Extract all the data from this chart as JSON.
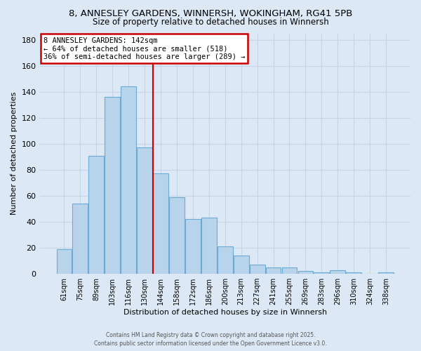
{
  "title_line1": "8, ANNESLEY GARDENS, WINNERSH, WOKINGHAM, RG41 5PB",
  "title_line2": "Size of property relative to detached houses in Winnersh",
  "xlabel": "Distribution of detached houses by size in Winnersh",
  "ylabel": "Number of detached properties",
  "bar_labels": [
    "61sqm",
    "75sqm",
    "89sqm",
    "103sqm",
    "116sqm",
    "130sqm",
    "144sqm",
    "158sqm",
    "172sqm",
    "186sqm",
    "200sqm",
    "213sqm",
    "227sqm",
    "241sqm",
    "255sqm",
    "269sqm",
    "283sqm",
    "296sqm",
    "310sqm",
    "324sqm",
    "338sqm"
  ],
  "bar_values": [
    19,
    54,
    91,
    136,
    144,
    97,
    77,
    59,
    42,
    43,
    21,
    14,
    7,
    5,
    5,
    2,
    1,
    3,
    1,
    0,
    1
  ],
  "bar_color": "#b8d4ea",
  "bar_edge_color": "#6aaad4",
  "vline_color": "#cc0000",
  "annotation_title": "8 ANNESLEY GARDENS: 142sqm",
  "annotation_line1": "← 64% of detached houses are smaller (518)",
  "annotation_line2": "36% of semi-detached houses are larger (289) →",
  "annotation_box_color": "white",
  "annotation_box_edge": "#cc0000",
  "ylim": [
    0,
    185
  ],
  "yticks": [
    0,
    20,
    40,
    60,
    80,
    100,
    120,
    140,
    160,
    180
  ],
  "footer_line1": "Contains HM Land Registry data © Crown copyright and database right 2025.",
  "footer_line2": "Contains public sector information licensed under the Open Government Licence v3.0.",
  "background_color": "#dce8f5",
  "plot_bg_color": "#dce8f5",
  "grid_color": "#c5d5e5"
}
